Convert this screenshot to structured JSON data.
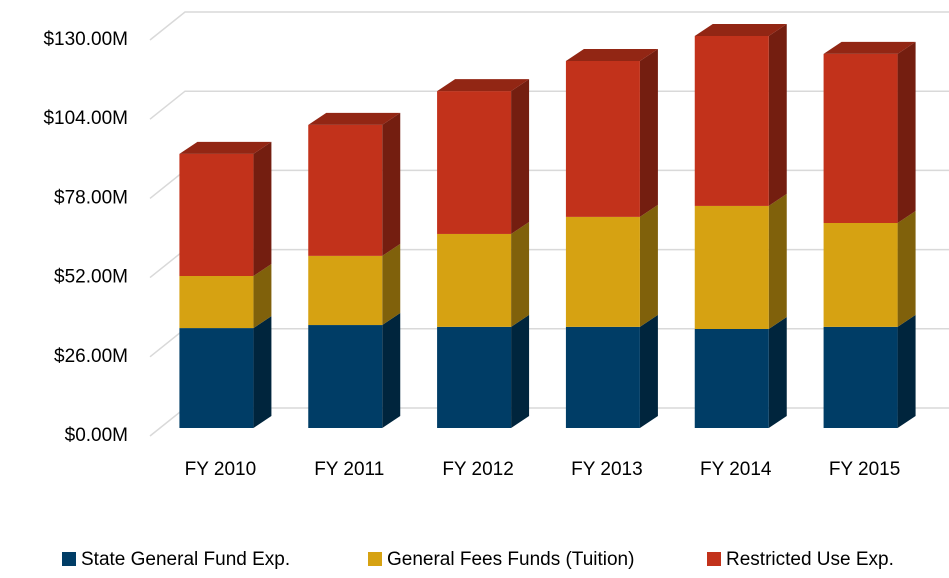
{
  "chart_data": {
    "type": "bar3d_stacked",
    "categories": [
      "FY 2010",
      "FY 2011",
      "FY 2012",
      "FY 2013",
      "FY 2014",
      "FY 2015"
    ],
    "series": [
      {
        "name": "State General Fund Exp.",
        "color": "#003d66",
        "values": [
          32.8,
          33.8,
          33.2,
          33.2,
          32.5,
          33.2
        ]
      },
      {
        "name": "General Fees Funds (Tuition)",
        "color": "#d6a212",
        "values": [
          17.1,
          22.7,
          30.5,
          36.1,
          40.4,
          34.1
        ]
      },
      {
        "name": "Restricted Use Exp.",
        "color": "#c2321b",
        "values": [
          40.1,
          43.0,
          46.9,
          51.2,
          55.8,
          55.5
        ]
      }
    ],
    "ylim": [
      0,
      130
    ],
    "yticks": [
      {
        "value": 0,
        "label": "$0.00M"
      },
      {
        "value": 26,
        "label": "$26.00M"
      },
      {
        "value": 52,
        "label": "$52.00M"
      },
      {
        "value": 78,
        "label": "$78.00M"
      },
      {
        "value": 104,
        "label": "$104.00M"
      },
      {
        "value": 130,
        "label": "$130.00M"
      }
    ],
    "grid": true,
    "legend": "bottom"
  }
}
